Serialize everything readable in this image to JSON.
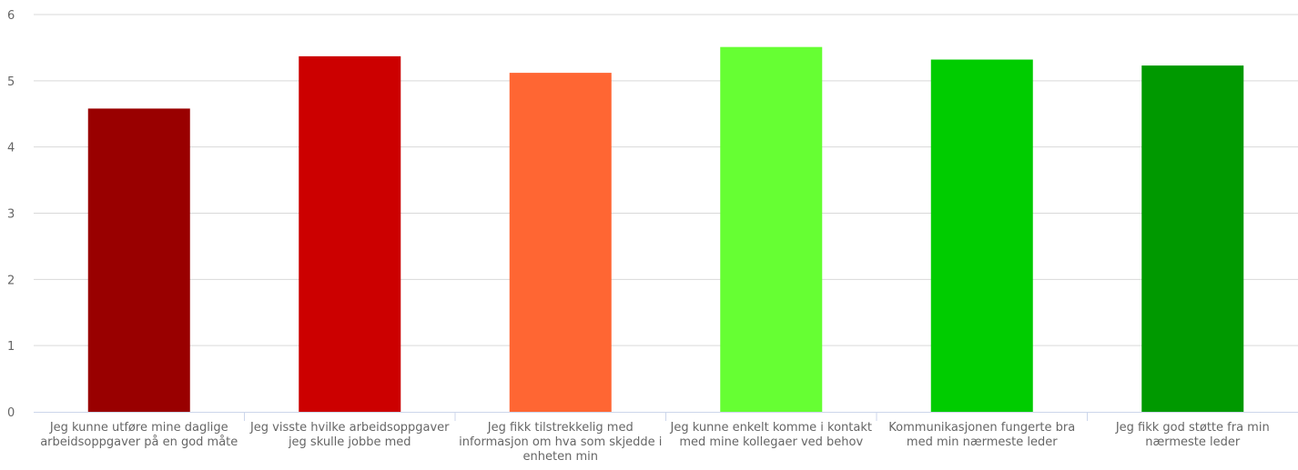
{
  "chart_data": {
    "type": "bar",
    "categories": [
      "Jeg kunne utføre mine daglige arbeidsoppgaver på en god måte",
      "Jeg visste hvilke arbeidsoppgaver jeg skulle jobbe med",
      "Jeg fikk tilstrekkelig med informasjon om hva som skjedde i enheten min",
      "Jeg kunne enkelt komme i kontakt med mine kollegaer ved behov",
      "Kommunikasjonen fungerte bra med min nærmeste leder",
      "Jeg fikk god støtte fra min nærmeste leder"
    ],
    "values": [
      4.58,
      5.37,
      5.12,
      5.51,
      5.32,
      5.23
    ],
    "colors": [
      "#990000",
      "#cc0000",
      "#ff6633",
      "#66ff33",
      "#00cc00",
      "#009900"
    ],
    "ylim": [
      0,
      6
    ],
    "yticks": [
      "0",
      "1",
      "2",
      "3",
      "4",
      "5",
      "6"
    ],
    "grid": true,
    "legend": "none"
  }
}
